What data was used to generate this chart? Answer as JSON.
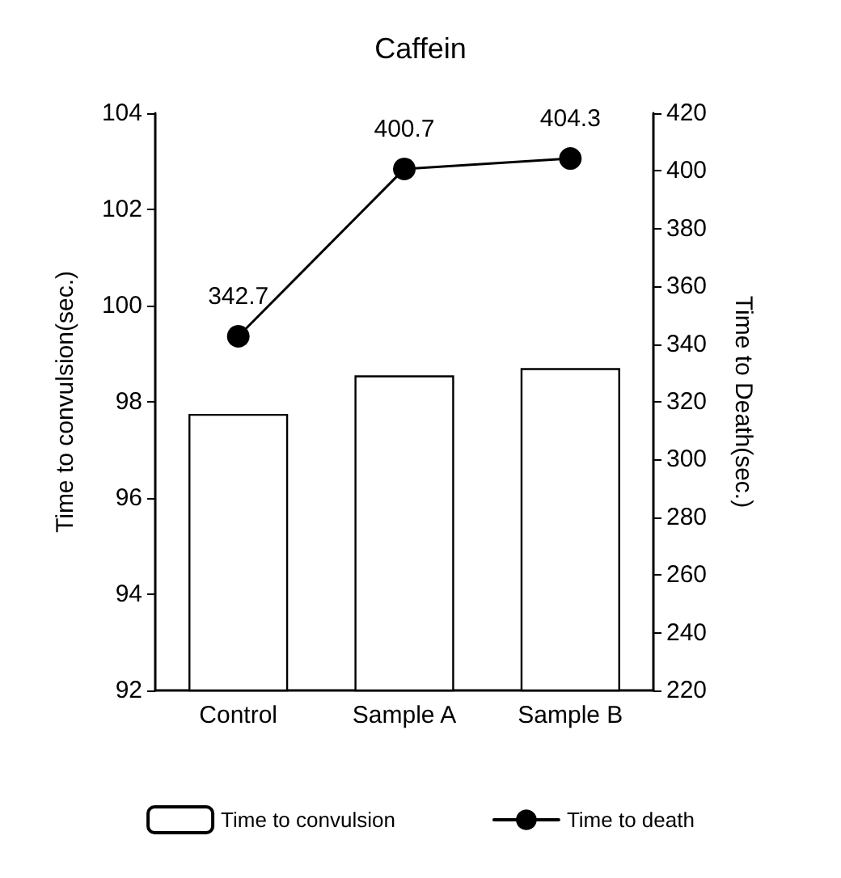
{
  "chart_data": {
    "type": "bar",
    "title": "Caffein",
    "ylabel": "Time to convulsion(sec.)",
    "y2label": "Time to Death(sec.)",
    "categories": [
      "Control",
      "Sample A",
      "Sample B"
    ],
    "series": [
      {
        "name": "Time to convulsion",
        "color": "#ffffff",
        "values": [
          97.75,
          98.55,
          98.7
        ]
      },
      {
        "name": "Time to death",
        "type": "line",
        "axis": "y2",
        "color": "#000000",
        "values": [
          342.7,
          400.7,
          404.3
        ],
        "value_labels": [
          "342.7",
          "400.7",
          "404.3"
        ]
      }
    ],
    "ylim": [
      92,
      104
    ],
    "yticks": [
      92,
      94,
      96,
      98,
      100,
      102,
      104
    ],
    "y2lim": [
      220,
      420
    ],
    "y2ticks": [
      220,
      240,
      260,
      280,
      300,
      320,
      340,
      360,
      380,
      400,
      420
    ],
    "grid": false,
    "legend": "bottom",
    "marker": "circle",
    "line_style": "solid"
  }
}
